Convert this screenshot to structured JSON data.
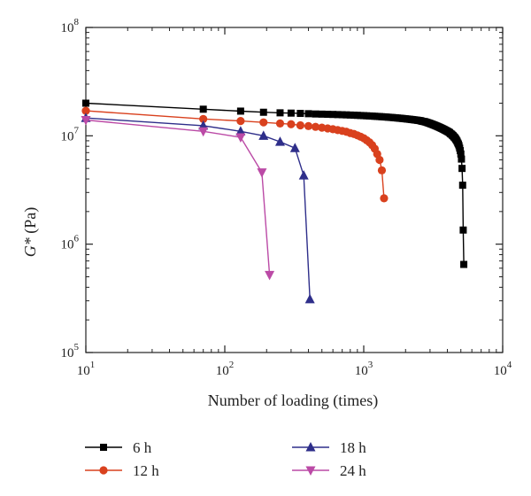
{
  "chart_data": {
    "type": "line",
    "title": "",
    "xlabel": "Number of loading (times)",
    "ylabel": {
      "symbol": "G*",
      "unit": " (Pa)"
    },
    "x_scale": "log",
    "y_scale": "log",
    "xlim": [
      10,
      10000
    ],
    "ylim": [
      100000,
      100000000
    ],
    "x_ticks": [
      {
        "base": "10",
        "exp": "1",
        "value": 10
      },
      {
        "base": "10",
        "exp": "2",
        "value": 100
      },
      {
        "base": "10",
        "exp": "3",
        "value": 1000
      },
      {
        "base": "10",
        "exp": "4",
        "value": 10000
      }
    ],
    "y_ticks": [
      {
        "base": "10",
        "exp": "5",
        "value": 100000
      },
      {
        "base": "10",
        "exp": "6",
        "value": 1000000
      },
      {
        "base": "10",
        "exp": "7",
        "value": 10000000
      },
      {
        "base": "10",
        "exp": "8",
        "value": 100000000
      }
    ],
    "grid": false,
    "legend_position": "bottom",
    "series": [
      {
        "name": "6 h",
        "color": "#000000",
        "marker": "square",
        "x": [
          10,
          70,
          130,
          190,
          250,
          300,
          350,
          400,
          450,
          500,
          550,
          600,
          650,
          700,
          750,
          800,
          850,
          900,
          950,
          1000,
          1050,
          1100,
          1150,
          1200,
          1250,
          1300,
          1350,
          1400,
          1450,
          1500,
          1550,
          1600,
          1650,
          1700,
          1750,
          1800,
          1850,
          1900,
          1950,
          2000,
          2050,
          2100,
          2150,
          2200,
          2250,
          2300,
          2350,
          2400,
          2450,
          2500,
          2550,
          2600,
          2650,
          2700,
          2750,
          2800,
          2850,
          2900,
          2950,
          3000,
          3050,
          3100,
          3150,
          3200,
          3250,
          3300,
          3350,
          3400,
          3450,
          3500,
          3550,
          3600,
          3650,
          3700,
          3750,
          3800,
          3850,
          3900,
          3950,
          4000,
          4050,
          4100,
          4150,
          4200,
          4250,
          4300,
          4350,
          4400,
          4450,
          4500,
          4550,
          4600,
          4650,
          4700,
          4750,
          4800,
          4850,
          4900,
          4950,
          5000,
          5050,
          5100,
          5150,
          5200,
          5250
        ],
        "y": [
          20000000,
          17600000,
          16900000,
          16500000,
          16300000,
          16200000,
          16100000,
          16000000,
          15900000,
          15850000,
          15800000,
          15750000,
          15700000,
          15650000,
          15600000,
          15550000,
          15500000,
          15450000,
          15400000,
          15350000,
          15300000,
          15250000,
          15200000,
          15150000,
          15100000,
          15050000,
          15000000,
          14950000,
          14900000,
          14850000,
          14800000,
          14750000,
          14700000,
          14650000,
          14600000,
          14550000,
          14500000,
          14450000,
          14400000,
          14350000,
          14300000,
          14250000,
          14200000,
          14150000,
          14100000,
          14050000,
          14000000,
          13950000,
          13900000,
          13850000,
          13800000,
          13700000,
          13600000,
          13550000,
          13500000,
          13400000,
          13300000,
          13200000,
          13100000,
          13000000,
          12900000,
          12800000,
          12700000,
          12600000,
          12500000,
          12400000,
          12300000,
          12200000,
          12100000,
          12000000,
          11900000,
          11800000,
          11700000,
          11600000,
          11500000,
          11400000,
          11300000,
          11200000,
          11100000,
          11000000,
          10900000,
          10800000,
          10700000,
          10500000,
          10400000,
          10300000,
          10100000,
          10000000,
          9800000,
          9700000,
          9500000,
          9300000,
          9100000,
          8900000,
          8600000,
          8400000,
          8100000,
          7700000,
          7300000,
          6800000,
          6100000,
          5000000,
          3500000,
          1350000,
          650000
        ]
      },
      {
        "name": "12 h",
        "color": "#d9411e",
        "marker": "circle",
        "x": [
          10,
          70,
          130,
          190,
          250,
          300,
          350,
          400,
          450,
          500,
          550,
          600,
          650,
          700,
          750,
          800,
          850,
          900,
          950,
          1000,
          1050,
          1100,
          1150,
          1200,
          1250,
          1300,
          1350,
          1400
        ],
        "y": [
          17000000,
          14300000,
          13700000,
          13300000,
          13000000,
          12800000,
          12500000,
          12300000,
          12100000,
          11900000,
          11700000,
          11500000,
          11300000,
          11100000,
          10900000,
          10600000,
          10400000,
          10100000,
          9800000,
          9500000,
          9100000,
          8700000,
          8200000,
          7600000,
          6800000,
          6000000,
          4800000,
          2650000
        ]
      },
      {
        "name": "18 h",
        "color": "#2e2e8a",
        "marker": "triangle-up",
        "x": [
          10,
          70,
          130,
          190,
          250,
          320,
          370,
          410
        ],
        "y": [
          14600000,
          12400000,
          11000000,
          10000000,
          8800000,
          7700000,
          4300000,
          310000
        ]
      },
      {
        "name": "24 h",
        "color": "#bb4aa6",
        "marker": "triangle-down",
        "x": [
          10,
          70,
          130,
          185,
          210
        ],
        "y": [
          14000000,
          11000000,
          9700000,
          4600000,
          520000
        ]
      }
    ]
  }
}
